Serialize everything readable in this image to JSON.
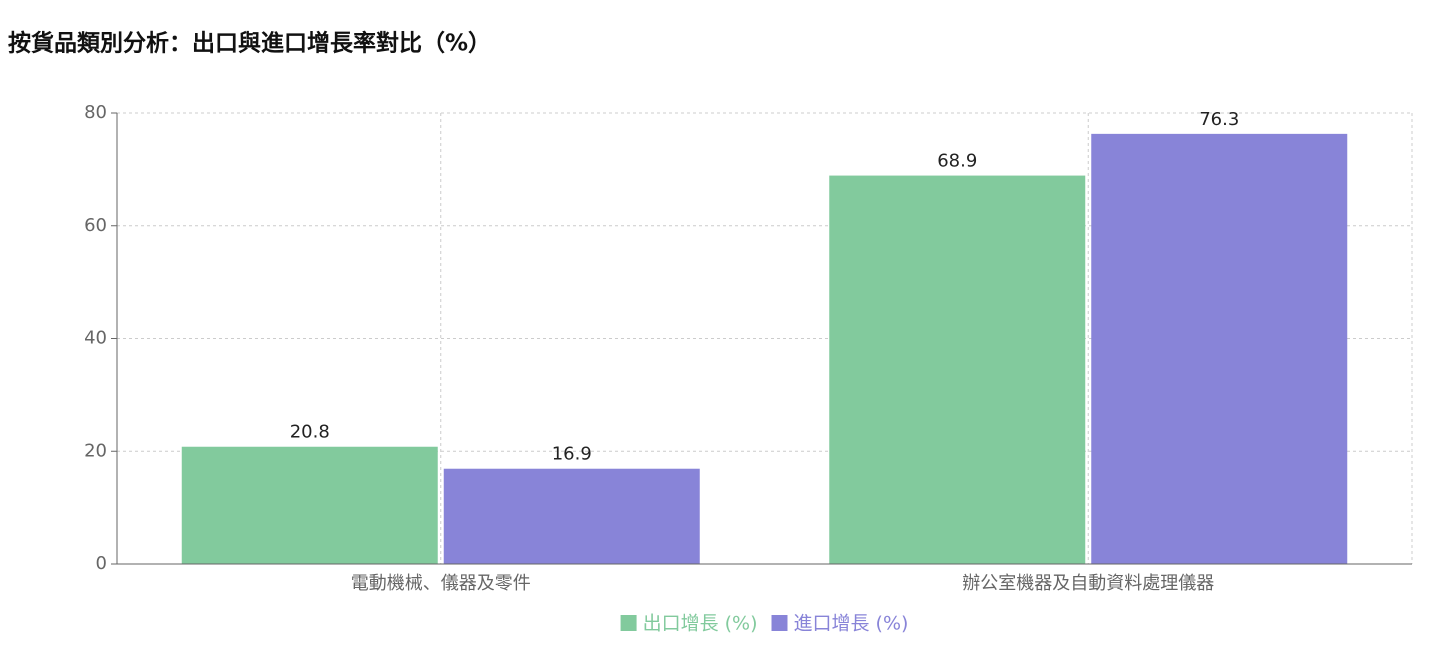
{
  "chart_data": {
    "type": "bar",
    "title": "按貨品類別分析：出口與進口增長率對比（%）",
    "categories": [
      "電動機械、儀器及零件",
      "辦公室機器及自動資料處理儀器"
    ],
    "series": [
      {
        "name": "出口增長 (%)",
        "color": "#82ca9d",
        "values": [
          20.8,
          68.9
        ]
      },
      {
        "name": "進口增長 (%)",
        "color": "#8884d8",
        "values": [
          16.9,
          76.3
        ]
      }
    ],
    "ylim": [
      0,
      80
    ],
    "yticks": [
      0,
      20,
      40,
      60,
      80
    ],
    "grid": true
  }
}
